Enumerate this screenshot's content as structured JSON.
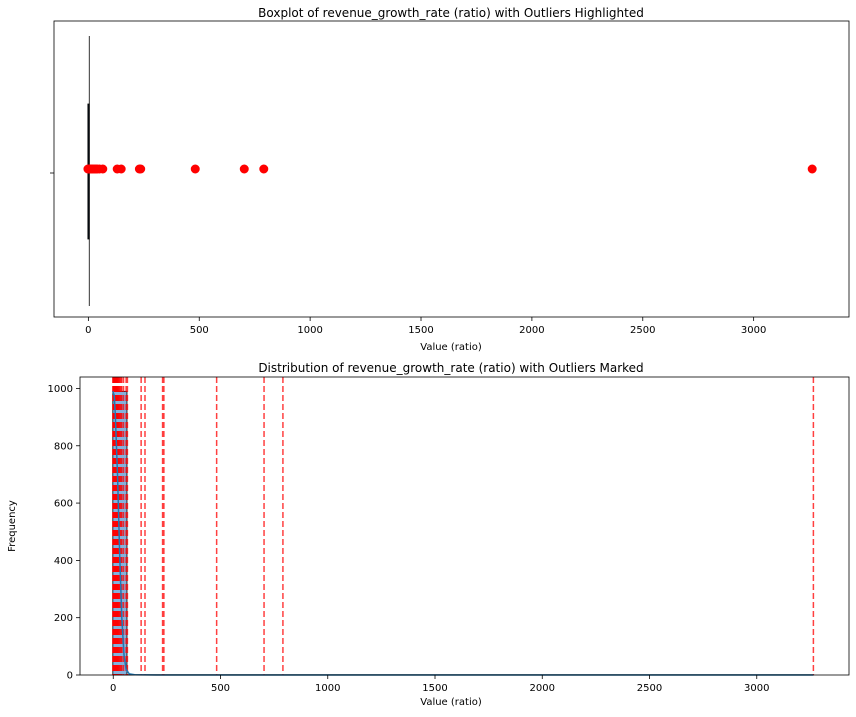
{
  "chart_data": [
    {
      "type": "boxplot",
      "title": "Boxplot of revenue_growth_rate (ratio) with Outliers Highlighted",
      "xlabel": "Value (ratio)",
      "ylabel": "",
      "xlim": [
        -155,
        3430
      ],
      "xticks": [
        0,
        500,
        1000,
        1500,
        2000,
        2500,
        3000
      ],
      "xtick_labels": [
        "0",
        "500",
        "1000",
        "1500",
        "2000",
        "2500",
        "3000"
      ],
      "box": {
        "q1": 0.5,
        "median": 1.0,
        "q3": 2.0,
        "whisker_low": 0.0,
        "whisker_high": 4.0
      },
      "outliers": [
        -2,
        2,
        5,
        8,
        12,
        16,
        20,
        25,
        30,
        35,
        40,
        50,
        65,
        130,
        148,
        230,
        236,
        482,
        703,
        791,
        3264
      ],
      "outlier_color": "#ff0000",
      "grid": false
    },
    {
      "type": "histogram",
      "title": "Distribution of revenue_growth_rate (ratio) with Outliers Marked",
      "xlabel": "Value (ratio)",
      "ylabel": "Frequency",
      "xlim": [
        -155,
        3430
      ],
      "ylim": [
        0,
        1040
      ],
      "xticks": [
        0,
        500,
        1000,
        1500,
        2000,
        2500,
        3000
      ],
      "xtick_labels": [
        "0",
        "500",
        "1000",
        "1500",
        "2000",
        "2500",
        "3000"
      ],
      "yticks": [
        0,
        200,
        400,
        600,
        800,
        1000
      ],
      "ytick_labels": [
        "0",
        "200",
        "400",
        "600",
        "800",
        "1000"
      ],
      "bins": [
        {
          "x0": -2,
          "x1": 64,
          "count": 990
        },
        {
          "x0": 64,
          "x1": 3264,
          "count": 1
        }
      ],
      "kde": [
        [
          -2,
          990
        ],
        [
          5,
          975
        ],
        [
          10,
          900
        ],
        [
          20,
          700
        ],
        [
          30,
          420
        ],
        [
          40,
          200
        ],
        [
          50,
          70
        ],
        [
          60,
          20
        ],
        [
          75,
          4
        ],
        [
          100,
          1
        ],
        [
          200,
          0
        ],
        [
          3264,
          0
        ]
      ],
      "outlier_lines": [
        -2,
        0,
        2,
        4,
        6,
        8,
        10,
        12,
        14,
        16,
        18,
        20,
        22,
        25,
        28,
        32,
        36,
        40,
        48,
        60,
        66,
        130,
        148,
        230,
        236,
        482,
        703,
        791,
        3264
      ],
      "bar_color": "#6fa3d6",
      "line_color": "#1f77b4",
      "outlier_line_color": "#ff0000",
      "grid": false
    }
  ]
}
